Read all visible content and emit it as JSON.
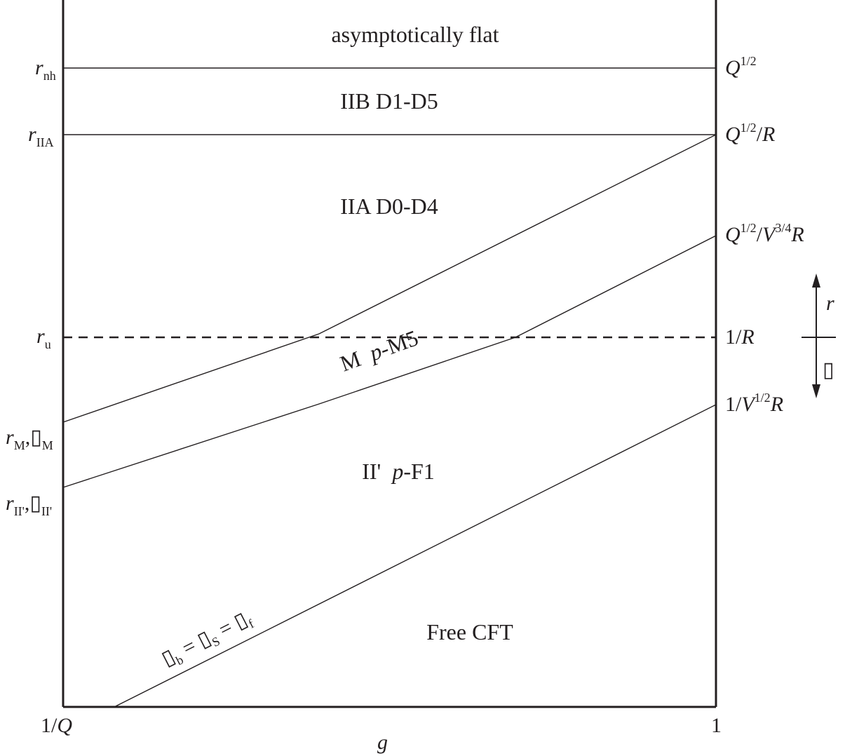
{
  "regions": {
    "asymptotically_flat": "asymptotically flat",
    "iib": "IIB  D1-D5",
    "iia": "IIA  D0-D4",
    "m_pm5_a": "M  ",
    "m_pm5_b": "p",
    "m_pm5_c": "-M5",
    "ii_prime_a": "II'  ",
    "ii_prime_b": "p",
    "ii_prime_c": "-F1",
    "free_cft": "Free CFT"
  },
  "left_axis": {
    "r": "r",
    "nh": "nh",
    "IIA": "IIA",
    "u": "u",
    "M": "M",
    "IIprime": "II'",
    "comma": ",",
    "unknown_glyph": "▯"
  },
  "right_axis": {
    "Q": "Q",
    "half": "1/2",
    "slash": "/",
    "R": "R",
    "V": "V",
    "three_quarters": "3/4",
    "one": "1",
    "slash_R_prefix": "1/"
  },
  "bottom_axis": {
    "left_tick": "1/Q_",
    "left_tick_prefix": "1/",
    "left_tick_var": "Q",
    "right_tick": "1",
    "xlabel": "g"
  },
  "arrows": {
    "up_label": "r",
    "down_label": "▯"
  },
  "boundary_line": {
    "b": "b",
    "S": "S",
    "f": "f",
    "eq": " = ",
    "unknown_glyph": "▯"
  }
}
